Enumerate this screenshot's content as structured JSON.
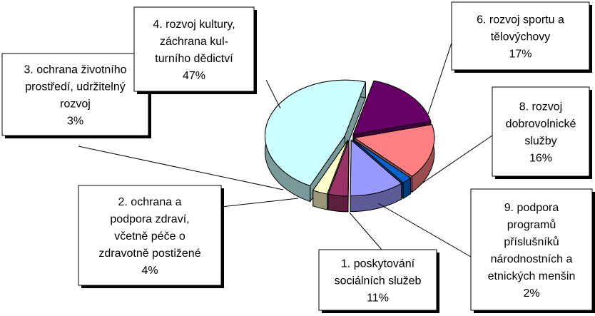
{
  "chart_data": {
    "type": "pie",
    "categories": [
      "6. rozvoj sportu a\ntělovýchovy",
      "8. rozvoj\ndobrovolnické\nslužby",
      "9. podpora\nprogramů\npříslušníků\nnárodnostních a\netnických menšin",
      "1. poskytování\nsociálních služeb",
      "2. ochrana a\npodpora zdraví,\nvčetně péče o\nzdravotně postižené",
      "3. ochrana životního\nprostředí, udržitelný\nrozvoj",
      "4. rozvoj kultury,\nzáchrana kul-\nturního dědictví"
    ],
    "values": [
      17,
      16,
      2,
      11,
      4,
      3,
      47
    ],
    "value_labels": [
      "17%",
      "16%",
      "2%",
      "11%",
      "4%",
      "3%",
      "47%"
    ],
    "colors": [
      "#660066",
      "#ff8080",
      "#0066cc",
      "#9999ff",
      "#993366",
      "#ffffcc",
      "#ccffff"
    ]
  }
}
